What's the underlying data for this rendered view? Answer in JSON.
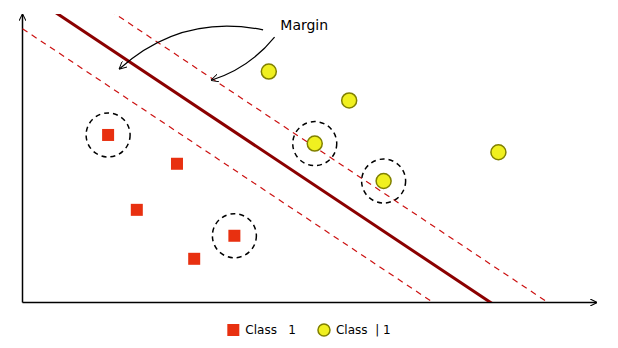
{
  "chart_data": {
    "type": "scatter",
    "xlim": [
      -0.5,
      9.5
    ],
    "ylim": [
      1.0,
      11.0
    ],
    "tick_labels": false,
    "legend": "bottom",
    "series": [
      {
        "name": "Class   1",
        "color": "#e83010",
        "marker": "square",
        "x": [
          1.0,
          2.2,
          1.5,
          3.2,
          2.5
        ],
        "values": [
          6.8,
          5.8,
          4.2,
          3.3,
          2.5
        ],
        "support_x": [
          1.0,
          3.2
        ],
        "support_values": [
          6.8,
          3.3
        ]
      },
      {
        "name": "Class  | 1",
        "color": "#f0f020",
        "edge_color": "#808000",
        "marker": "circle",
        "x": [
          3.8,
          5.2,
          4.6,
          7.8,
          5.8
        ],
        "values": [
          9.0,
          8.0,
          6.5,
          6.2,
          5.2
        ],
        "support_x": [
          4.6,
          5.8
        ],
        "support_values": [
          6.5,
          5.2
        ]
      }
    ],
    "hyperplane": {
      "color": "#8b0000",
      "line_style": "solid",
      "x": [
        0.5,
        7.5
      ],
      "values": [
        10.5,
        1.2
      ]
    },
    "margins": [
      {
        "color": "#cc1111",
        "line_style": "dashed",
        "x": [
          -0.5,
          6.5
        ],
        "values": [
          10.5,
          1.2
        ]
      },
      {
        "color": "#cc1111",
        "line_style": "dashed",
        "x": [
          1.5,
          8.5
        ],
        "values": [
          10.5,
          1.2
        ]
      }
    ],
    "annotations": [
      {
        "text": "Margin",
        "x": 4.0,
        "y": 10.6,
        "arrows": [
          {
            "x": 1.2,
            "y": 9.1,
            "from_x": 3.7,
            "from_y": 10.45
          },
          {
            "x": 2.8,
            "y": 8.7,
            "from_x": 3.9,
            "from_y": 10.2
          }
        ]
      }
    ]
  }
}
